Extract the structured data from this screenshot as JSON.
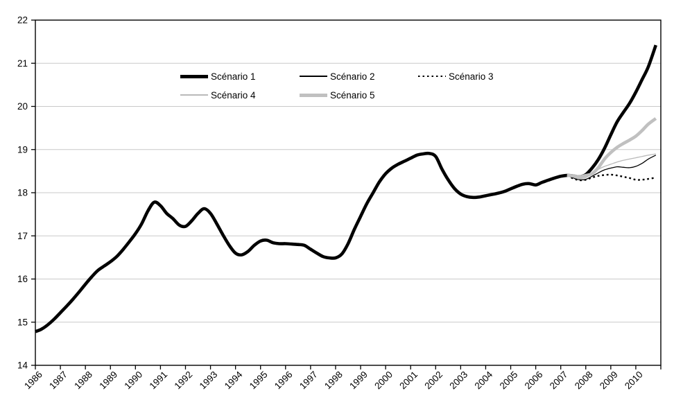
{
  "chart_data": {
    "type": "line",
    "title": "",
    "xlabel": "",
    "ylabel": "",
    "xlim": [
      1986,
      2011
    ],
    "ylim": [
      14,
      22
    ],
    "y_ticks": [
      14,
      15,
      16,
      17,
      18,
      19,
      20,
      21,
      22
    ],
    "x_tick_labels": [
      "1986",
      "1987",
      "1988",
      "1989",
      "1990",
      "1991",
      "1992",
      "1993",
      "1994",
      "1995",
      "1996",
      "1997",
      "1998",
      "1999",
      "2000",
      "2001",
      "2002",
      "2003",
      "2004",
      "2005",
      "2006",
      "2007",
      "2008",
      "2009",
      "2010"
    ],
    "grid": "horizontal-light-gray",
    "legend_position": "top-center-inside, two rows, no border",
    "colors": {
      "axis": "#000000",
      "grid": "#c9c9c9",
      "background": "#ffffff"
    },
    "series": [
      {
        "name": "Scénario 1",
        "color": "#000000",
        "width": 4.6,
        "dash": "solid",
        "points": [
          [
            1986.0,
            14.78
          ],
          [
            1986.25,
            14.84
          ],
          [
            1986.5,
            14.94
          ],
          [
            1986.75,
            15.07
          ],
          [
            1987.0,
            15.22
          ],
          [
            1987.25,
            15.37
          ],
          [
            1987.5,
            15.53
          ],
          [
            1987.75,
            15.7
          ],
          [
            1988.0,
            15.88
          ],
          [
            1988.25,
            16.05
          ],
          [
            1988.5,
            16.2
          ],
          [
            1988.75,
            16.3
          ],
          [
            1989.0,
            16.4
          ],
          [
            1989.25,
            16.52
          ],
          [
            1989.5,
            16.68
          ],
          [
            1989.75,
            16.86
          ],
          [
            1990.0,
            17.05
          ],
          [
            1990.25,
            17.28
          ],
          [
            1990.5,
            17.58
          ],
          [
            1990.75,
            17.78
          ],
          [
            1991.0,
            17.7
          ],
          [
            1991.25,
            17.52
          ],
          [
            1991.5,
            17.4
          ],
          [
            1991.75,
            17.25
          ],
          [
            1992.0,
            17.22
          ],
          [
            1992.25,
            17.35
          ],
          [
            1992.5,
            17.52
          ],
          [
            1992.75,
            17.63
          ],
          [
            1993.0,
            17.52
          ],
          [
            1993.25,
            17.28
          ],
          [
            1993.5,
            17.02
          ],
          [
            1993.75,
            16.78
          ],
          [
            1994.0,
            16.6
          ],
          [
            1994.25,
            16.56
          ],
          [
            1994.5,
            16.64
          ],
          [
            1994.75,
            16.78
          ],
          [
            1995.0,
            16.88
          ],
          [
            1995.25,
            16.9
          ],
          [
            1995.5,
            16.84
          ],
          [
            1995.75,
            16.82
          ],
          [
            1996.0,
            16.82
          ],
          [
            1996.25,
            16.81
          ],
          [
            1996.5,
            16.8
          ],
          [
            1996.75,
            16.78
          ],
          [
            1997.0,
            16.69
          ],
          [
            1997.25,
            16.6
          ],
          [
            1997.5,
            16.52
          ],
          [
            1997.75,
            16.49
          ],
          [
            1998.0,
            16.49
          ],
          [
            1998.25,
            16.58
          ],
          [
            1998.5,
            16.82
          ],
          [
            1998.75,
            17.15
          ],
          [
            1999.0,
            17.45
          ],
          [
            1999.25,
            17.75
          ],
          [
            1999.5,
            18.0
          ],
          [
            1999.75,
            18.25
          ],
          [
            2000.0,
            18.44
          ],
          [
            2000.25,
            18.57
          ],
          [
            2000.5,
            18.66
          ],
          [
            2000.75,
            18.73
          ],
          [
            2001.0,
            18.8
          ],
          [
            2001.25,
            18.87
          ],
          [
            2001.5,
            18.9
          ],
          [
            2001.75,
            18.91
          ],
          [
            2002.0,
            18.84
          ],
          [
            2002.25,
            18.55
          ],
          [
            2002.5,
            18.3
          ],
          [
            2002.75,
            18.1
          ],
          [
            2003.0,
            17.97
          ],
          [
            2003.25,
            17.91
          ],
          [
            2003.5,
            17.89
          ],
          [
            2003.75,
            17.9
          ],
          [
            2004.0,
            17.93
          ],
          [
            2004.25,
            17.96
          ],
          [
            2004.5,
            17.99
          ],
          [
            2004.75,
            18.03
          ],
          [
            2005.0,
            18.09
          ],
          [
            2005.25,
            18.15
          ],
          [
            2005.5,
            18.2
          ],
          [
            2005.75,
            18.21
          ],
          [
            2006.0,
            18.18
          ],
          [
            2006.25,
            18.24
          ],
          [
            2006.5,
            18.29
          ],
          [
            2006.75,
            18.34
          ],
          [
            2007.0,
            18.38
          ],
          [
            2007.25,
            18.4
          ],
          [
            2007.5,
            18.39
          ],
          [
            2007.75,
            18.37
          ],
          [
            2008.0,
            18.42
          ],
          [
            2008.25,
            18.57
          ],
          [
            2008.5,
            18.77
          ],
          [
            2008.75,
            19.03
          ],
          [
            2009.0,
            19.34
          ],
          [
            2009.25,
            19.64
          ],
          [
            2009.5,
            19.86
          ],
          [
            2009.75,
            20.07
          ],
          [
            2010.0,
            20.33
          ],
          [
            2010.25,
            20.62
          ],
          [
            2010.5,
            20.92
          ],
          [
            2010.8,
            21.42
          ]
        ]
      },
      {
        "name": "Scénario 2",
        "color": "#000000",
        "width": 1.3,
        "dash": "solid",
        "points": [
          [
            2007.25,
            18.4
          ],
          [
            2007.5,
            18.34
          ],
          [
            2007.75,
            18.3
          ],
          [
            2008.0,
            18.31
          ],
          [
            2008.25,
            18.38
          ],
          [
            2008.5,
            18.46
          ],
          [
            2008.75,
            18.53
          ],
          [
            2009.0,
            18.57
          ],
          [
            2009.25,
            18.6
          ],
          [
            2009.5,
            18.59
          ],
          [
            2009.75,
            18.58
          ],
          [
            2010.0,
            18.61
          ],
          [
            2010.25,
            18.68
          ],
          [
            2010.5,
            18.78
          ],
          [
            2010.8,
            18.87
          ]
        ]
      },
      {
        "name": "Scénario 3",
        "color": "#000000",
        "width": 2.4,
        "dash": "dotted",
        "points": [
          [
            2007.25,
            18.4
          ],
          [
            2007.5,
            18.33
          ],
          [
            2007.75,
            18.29
          ],
          [
            2008.0,
            18.3
          ],
          [
            2008.25,
            18.35
          ],
          [
            2008.5,
            18.39
          ],
          [
            2008.75,
            18.41
          ],
          [
            2009.0,
            18.42
          ],
          [
            2009.25,
            18.4
          ],
          [
            2009.5,
            18.37
          ],
          [
            2009.75,
            18.34
          ],
          [
            2010.0,
            18.3
          ],
          [
            2010.25,
            18.3
          ],
          [
            2010.5,
            18.32
          ],
          [
            2010.8,
            18.35
          ]
        ]
      },
      {
        "name": "Scénario 4",
        "color": "#b9b9b9",
        "width": 1.3,
        "dash": "solid",
        "points": [
          [
            2007.25,
            18.4
          ],
          [
            2007.5,
            18.36
          ],
          [
            2007.75,
            18.33
          ],
          [
            2008.0,
            18.35
          ],
          [
            2008.25,
            18.44
          ],
          [
            2008.5,
            18.54
          ],
          [
            2008.75,
            18.61
          ],
          [
            2009.0,
            18.66
          ],
          [
            2009.25,
            18.71
          ],
          [
            2009.5,
            18.75
          ],
          [
            2009.75,
            18.78
          ],
          [
            2010.0,
            18.81
          ],
          [
            2010.25,
            18.84
          ],
          [
            2010.5,
            18.87
          ],
          [
            2010.8,
            18.9
          ]
        ]
      },
      {
        "name": "Scénario 5",
        "color": "#c0c0c0",
        "width": 4.6,
        "dash": "solid",
        "points": [
          [
            2007.25,
            18.4
          ],
          [
            2007.5,
            18.39
          ],
          [
            2007.75,
            18.37
          ],
          [
            2008.0,
            18.4
          ],
          [
            2008.25,
            18.44
          ],
          [
            2008.5,
            18.58
          ],
          [
            2008.75,
            18.78
          ],
          [
            2009.0,
            18.93
          ],
          [
            2009.25,
            19.05
          ],
          [
            2009.5,
            19.14
          ],
          [
            2009.75,
            19.22
          ],
          [
            2010.0,
            19.31
          ],
          [
            2010.25,
            19.44
          ],
          [
            2010.5,
            19.59
          ],
          [
            2010.8,
            19.72
          ]
        ]
      }
    ]
  }
}
